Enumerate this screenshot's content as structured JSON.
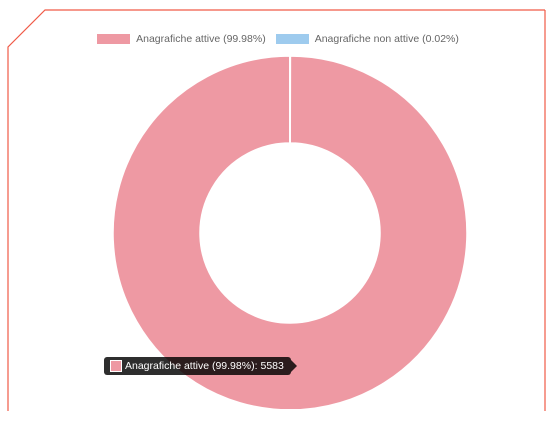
{
  "colors": {
    "frame": "#f05a47",
    "active": "#ee99a3",
    "inactive": "#9ecbee",
    "separator": "#ffffff"
  },
  "chart_data": {
    "type": "pie",
    "variant": "doughnut",
    "title": "",
    "legend_position": "top",
    "series": [
      {
        "name": "Anagrafiche attive (99.98%)",
        "value": 5583,
        "color": "#ee99a3"
      },
      {
        "name": "Anagrafiche non attive (0.02%)",
        "value": 1,
        "color": "#9ecbee"
      }
    ]
  },
  "tooltip": {
    "label": "Anagrafiche attive (99.98%):",
    "value": "5583",
    "color": "#ee99a3"
  }
}
